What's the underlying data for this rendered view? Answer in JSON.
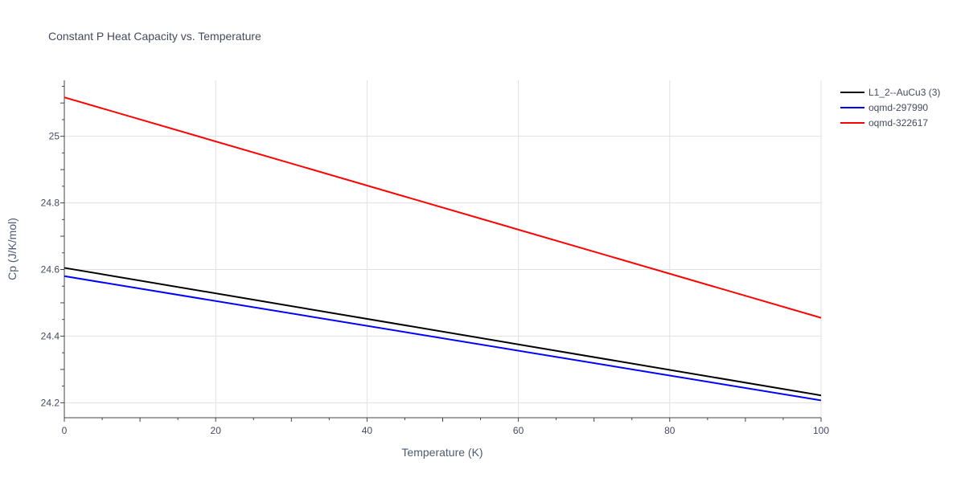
{
  "chart_data": {
    "type": "line",
    "title": "Constant P Heat Capacity vs. Temperature",
    "xlabel": "Temperature (K)",
    "ylabel": "Cp (J/K/mol)",
    "xlim": [
      0,
      100
    ],
    "ylim": [
      24.155,
      25.168
    ],
    "xticks": [
      0,
      20,
      40,
      60,
      80,
      100
    ],
    "xtick_labels": [
      "0",
      "20",
      "40",
      "60",
      "80",
      "100"
    ],
    "yticks": [
      24.2,
      24.4,
      24.6,
      24.8,
      25
    ],
    "ytick_labels": [
      "24.2",
      "24.4",
      "24.6",
      "24.8",
      "25"
    ],
    "grid": true,
    "legend_position": "top-right-outside",
    "series": [
      {
        "name": "L1_2--AuCu3 (3)",
        "color": "#000000",
        "x": [
          0,
          100
        ],
        "y": [
          24.605,
          24.222
        ]
      },
      {
        "name": "oqmd-297990",
        "color": "#0000ff",
        "x": [
          0,
          100
        ],
        "y": [
          24.58,
          24.207
        ]
      },
      {
        "name": "oqmd-322617",
        "color": "#ff0000",
        "x": [
          0,
          100
        ],
        "y": [
          25.117,
          24.455
        ]
      }
    ]
  }
}
